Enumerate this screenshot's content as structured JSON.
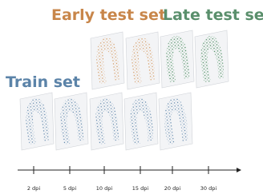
{
  "titles": {
    "early": "Early test set",
    "late": "Late test set",
    "train": "Train set"
  },
  "timeline": {
    "labels": [
      "2 dpi",
      "5 dpi",
      "10 dpi",
      "15 dpi",
      "20 dpi",
      "30 dpi"
    ]
  }
}
